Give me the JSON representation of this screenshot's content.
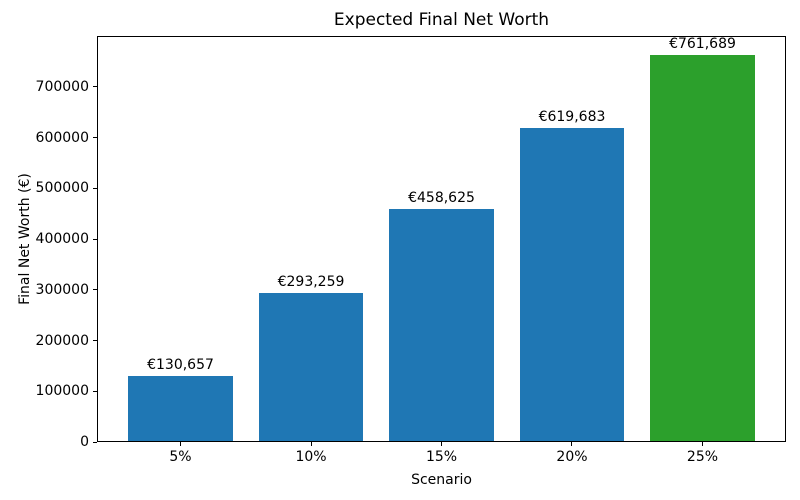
{
  "figure": {
    "background": "#ffffff",
    "text_color": "#000000"
  },
  "chart_data": {
    "type": "bar",
    "title": "Expected Final Net Worth",
    "xlabel": "Scenario",
    "ylabel": "Final Net Worth (€)",
    "categories": [
      "5%",
      "10%",
      "15%",
      "20%",
      "25%"
    ],
    "values": [
      130657,
      293259,
      458625,
      619683,
      761689
    ],
    "bar_labels": [
      "€130,657",
      "€293,259",
      "€458,625",
      "€619,683",
      "€761,689"
    ],
    "bar_colors": [
      "#1f77b4",
      "#1f77b4",
      "#1f77b4",
      "#1f77b4",
      "#2ca02c"
    ],
    "ylim": [
      0,
      800000
    ],
    "ytick_step": 100000,
    "ytick_labels": [
      "0",
      "100000",
      "200000",
      "300000",
      "400000",
      "500000",
      "600000",
      "700000"
    ],
    "grid": false,
    "legend_position": "none"
  }
}
